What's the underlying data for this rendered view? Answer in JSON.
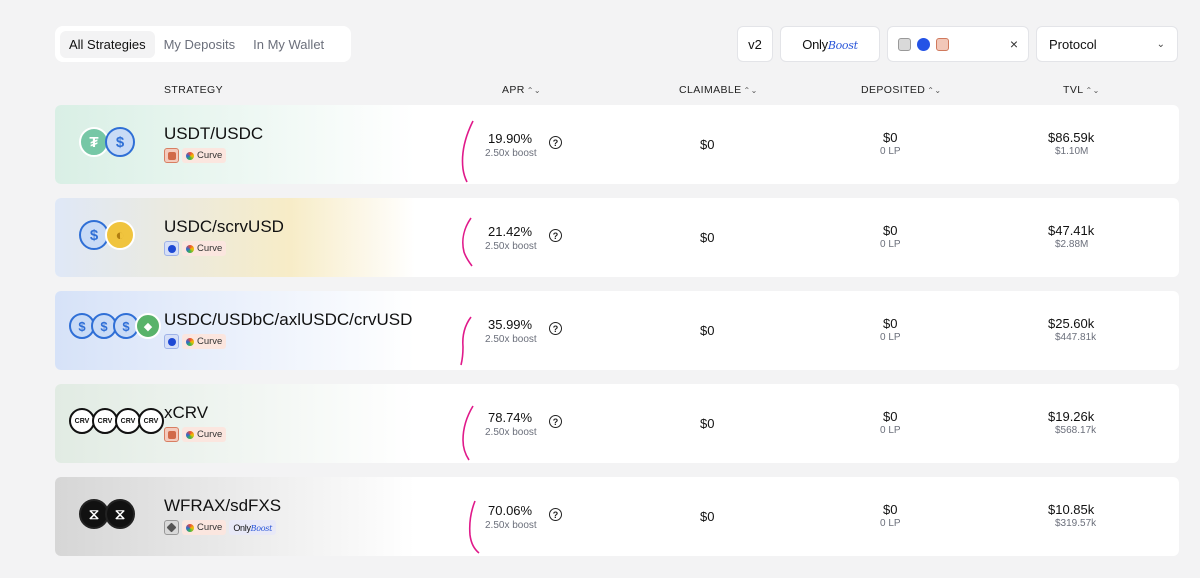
{
  "tabs": [
    {
      "label": "All Strategies",
      "active": true
    },
    {
      "label": "My Deposits",
      "active": false
    },
    {
      "label": "In My Wallet",
      "active": false
    }
  ],
  "filters": {
    "version_label": "v2",
    "onlyboost_text": "Only",
    "onlyboost_script": "Boost",
    "chain_icons": [
      "ethereum-icon",
      "base-icon",
      "arbitrum-icon"
    ],
    "clear_icon": "×",
    "protocol_label": "Protocol",
    "protocol_chevron": "⌄"
  },
  "columns": {
    "strategy": "STRATEGY",
    "apr": "APR",
    "claimable": "CLAIMABLE",
    "deposited": "DEPOSITED",
    "tvl": "TVL",
    "sort_icon": "⌃⌄"
  },
  "rows": [
    {
      "name": "USDT/USDC",
      "protocol": "Curve",
      "apr": "19.90%",
      "boost": "2.50x boost",
      "claimable": "$0",
      "deposited": "$0",
      "deposited_lp": "0 LP",
      "tvl": "$86.59k",
      "tvl_sub": "$1.10M",
      "accent": "#d9efe5"
    },
    {
      "name": "USDC/scrvUSD",
      "protocol": "Curve",
      "apr": "21.42%",
      "boost": "2.50x boost",
      "claimable": "$0",
      "deposited": "$0",
      "deposited_lp": "0 LP",
      "tvl": "$47.41k",
      "tvl_sub": "$2.88M",
      "accent": "#f7ecc7"
    },
    {
      "name": "USDC/USDbC/axlUSDC/crvUSD",
      "protocol": "Curve",
      "apr": "35.99%",
      "boost": "2.50x boost",
      "claimable": "$0",
      "deposited": "$0",
      "deposited_lp": "0 LP",
      "tvl": "$25.60k",
      "tvl_sub": "$447.81k",
      "accent": "#dbe5f8"
    },
    {
      "name": "xCRV",
      "protocol": "Curve",
      "apr": "78.74%",
      "boost": "2.50x boost",
      "claimable": "$0",
      "deposited": "$0",
      "deposited_lp": "0 LP",
      "tvl": "$19.26k",
      "tvl_sub": "$568.17k",
      "accent": "#e1ebe3"
    },
    {
      "name": "WFRAX/sdFXS",
      "protocol": "Curve",
      "apr": "70.06%",
      "boost": "2.50x boost",
      "claimable": "$0",
      "deposited": "$0",
      "deposited_lp": "0 LP",
      "tvl": "$10.85k",
      "tvl_sub": "$319.57k",
      "accent": "#dcdcdc"
    }
  ],
  "token_glyphs": {
    "usdt": "₮",
    "usdc": "$",
    "crv": "CRV",
    "frax": "⧖"
  },
  "help_icon": "?"
}
